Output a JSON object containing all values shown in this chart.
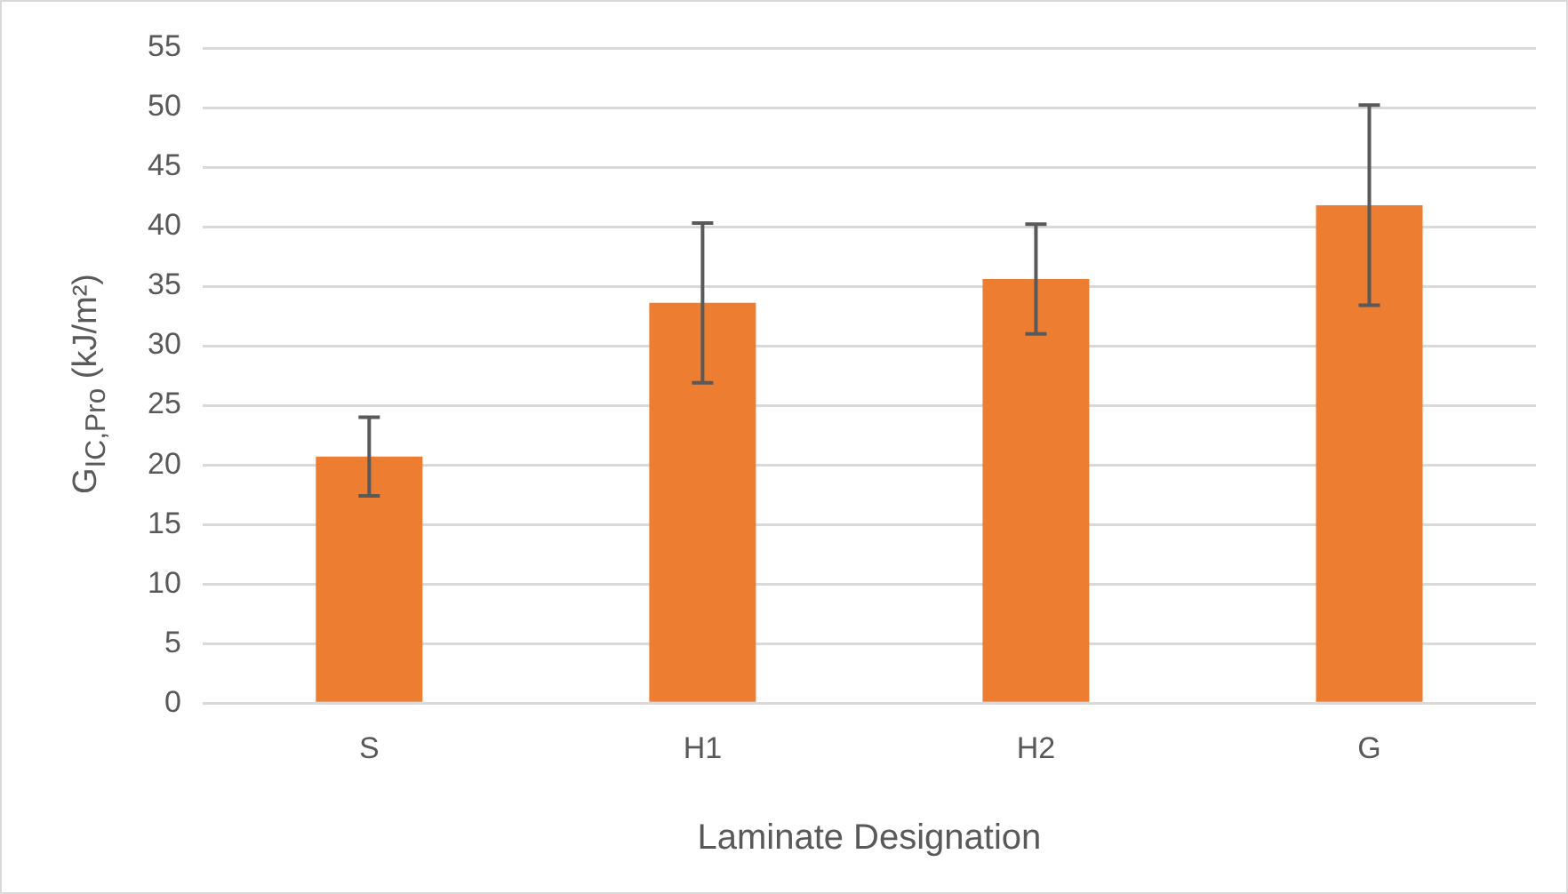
{
  "chart_data": {
    "type": "bar",
    "xlabel": "Laminate Designation",
    "ylabel": "G$_{IC,Pro}$ (kJ/m²)",
    "categories": [
      "S",
      "H1",
      "H2",
      "G"
    ],
    "values": [
      20.7,
      33.6,
      35.6,
      41.8
    ],
    "errors": [
      3.3,
      6.7,
      4.6,
      8.4
    ],
    "color": "#ed7d31",
    "ylim": [
      0,
      55
    ],
    "yticks": [
      0,
      5,
      10,
      15,
      20,
      25,
      30,
      35,
      40,
      45,
      50,
      55
    ],
    "grid": "y",
    "legend": false
  }
}
